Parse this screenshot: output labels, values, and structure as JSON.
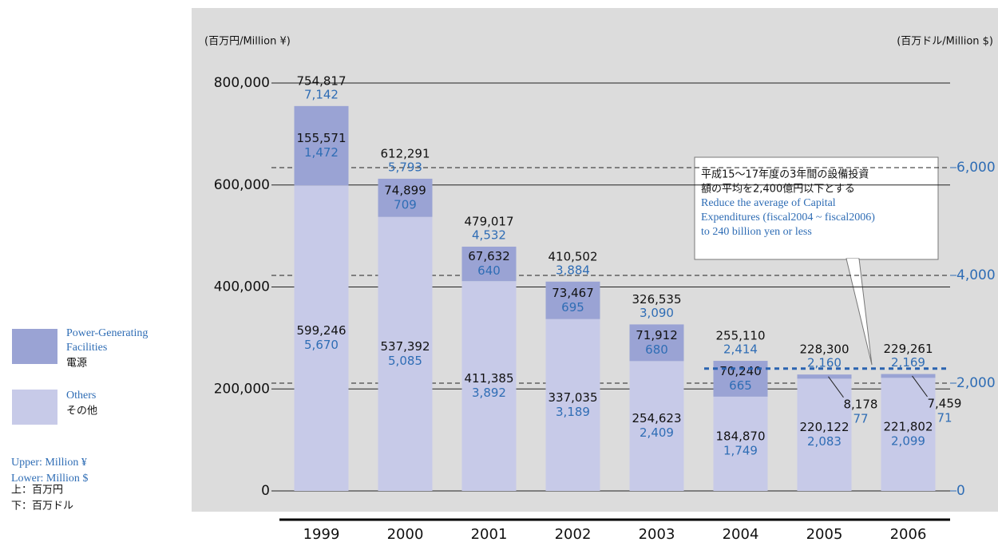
{
  "chart_data": {
    "type": "stacked_bar",
    "y_label": "(百万円/Million ¥)",
    "y2_label": "(百万ドル/Million $)",
    "categories": [
      "1999",
      "2000",
      "2001",
      "2002",
      "2003",
      "2004",
      "2005",
      "2006"
    ],
    "series": [
      {
        "name": "Others",
        "name_ja": "その他",
        "color": "#c7cae8",
        "values": [
          599246,
          537392,
          411385,
          337035,
          254623,
          184870,
          220122,
          221802
        ],
        "value_labels": [
          "599,246",
          "537,392",
          "411,385",
          "337,035",
          "254,623",
          "184,870",
          "220,122",
          "221,802"
        ],
        "values_usd": [
          5670,
          5085,
          3892,
          3189,
          2409,
          1749,
          2083,
          2099
        ],
        "value_labels_usd": [
          "5,670",
          "5,085",
          "3,892",
          "3,189",
          "2,409",
          "1,749",
          "2,083",
          "2,099"
        ]
      },
      {
        "name": "Power-Generating Facilities",
        "name_ja": "電源",
        "color": "#9aa3d4",
        "values": [
          155571,
          74899,
          67632,
          73467,
          71912,
          70240,
          8178,
          7459
        ],
        "value_labels": [
          "155,571",
          "74,899",
          "67,632",
          "73,467",
          "71,912",
          "70,240",
          "8,178",
          "7,459"
        ],
        "values_usd": [
          1472,
          709,
          640,
          695,
          680,
          665,
          77,
          71
        ],
        "value_labels_usd": [
          "1,472",
          "709",
          "640",
          "695",
          "680",
          "665",
          "77",
          "71"
        ]
      }
    ],
    "totals": [
      754817,
      612291,
      479017,
      410502,
      326535,
      255110,
      228300,
      229261
    ],
    "total_labels": [
      "754,817",
      "612,291",
      "479,017",
      "410,502",
      "326,535",
      "255,110",
      "228,300",
      "229,261"
    ],
    "totals_usd": [
      7142,
      5793,
      4532,
      3884,
      3090,
      2414,
      2160,
      2169
    ],
    "total_labels_usd": [
      "7,142",
      "5,793",
      "4,532",
      "3,884",
      "3,090",
      "2,414",
      "2,160",
      "2,169"
    ],
    "ylim": [
      0,
      800000
    ],
    "yticks": [
      0,
      {
        "value": 200000,
        "label": "200,000"
      },
      {
        "value": 400000,
        "label": "400,000"
      },
      {
        "value": 600000,
        "label": "600,000"
      },
      {
        "value": 800000,
        "label": "800,000"
      }
    ],
    "y2lim": [
      0,
      7570
    ],
    "y2ticks": [
      0,
      {
        "value": 2000,
        "label": "2,000"
      },
      {
        "value": 4000,
        "label": "4,000"
      },
      {
        "value": 6000,
        "label": "6,000"
      }
    ],
    "target": 240000,
    "annotation": [
      "平成15～17年度の3年間の設備投資",
      "額の平均を2,400億円以下とする",
      "Reduce the average of Capital",
      "Expenditures (fiscal2004 ~ fiscal2006)",
      "to  240 billion yen or less"
    ],
    "unit_notes": [
      "Upper: Million ¥",
      "Lower: Million $",
      "上：百万円",
      "下：百万ドル"
    ]
  }
}
